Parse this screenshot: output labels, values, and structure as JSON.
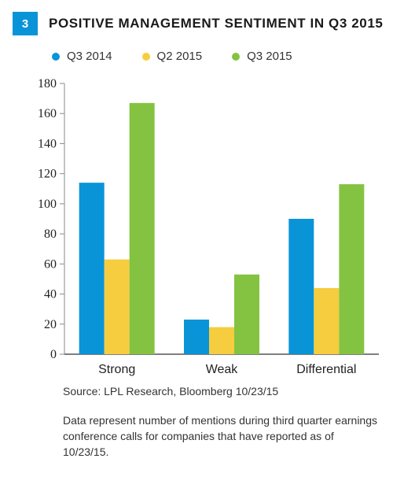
{
  "figure": {
    "number": "3",
    "title": "POSITIVE MANAGEMENT SENTIMENT IN Q3 2015",
    "source": "Source: LPL Research, Bloomberg   10/23/15",
    "note": "Data represent number of mentions during third quarter earnings conference calls for companies that have reported as of 10/23/15."
  },
  "chart_data": {
    "type": "bar",
    "title": "POSITIVE MANAGEMENT SENTIMENT IN Q3 2015",
    "xlabel": "",
    "ylabel": "",
    "categories": [
      "Strong",
      "Weak",
      "Differential"
    ],
    "series": [
      {
        "name": "Q3 2014",
        "color": "#0a94d8",
        "values": [
          114,
          23,
          90
        ]
      },
      {
        "name": "Q2 2015",
        "color": "#f6cd3e",
        "values": [
          63,
          18,
          44
        ]
      },
      {
        "name": "Q3 2015",
        "color": "#84c341",
        "values": [
          167,
          53,
          113
        ]
      }
    ],
    "ylim": [
      0,
      180
    ],
    "yticks": [
      0,
      20,
      40,
      60,
      80,
      100,
      120,
      140,
      160,
      180
    ],
    "grid": false,
    "legend": "top-left"
  }
}
